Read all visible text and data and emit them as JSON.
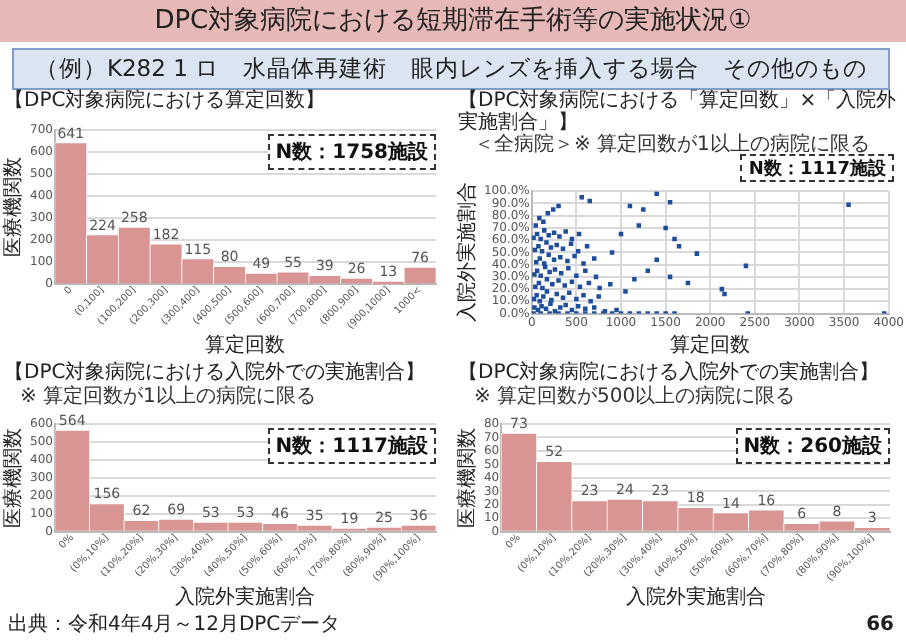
{
  "chart_data": [
    {
      "type": "other",
      "title": "DPC対象病院における短期滞在手術等の実施状況①",
      "subtitle": "（例）K282 1 ロ　水晶体再建術　眼内レンズを挿入する場合　その他のもの",
      "annotations": [
        "出典：令和4年4月～12月DPCデータ",
        "66"
      ]
    },
    {
      "type": "bar",
      "title": "【DPC対象病院における算定回数】",
      "xlabel": "算定回数",
      "ylabel": "医療機関数",
      "categories": [
        "0",
        "(0,100]",
        "(100,200]",
        "(200,300]",
        "(300,400]",
        "(400,500]",
        "(500,600]",
        "(600,700]",
        "(700,800]",
        "(800,900]",
        "(900,1000]",
        "1000<"
      ],
      "values": [
        641,
        224,
        258,
        182,
        115,
        80,
        49,
        55,
        39,
        26,
        13,
        76
      ],
      "color": "#d99594",
      "ylim": [
        0,
        700
      ],
      "yticks": [
        0,
        100,
        200,
        300,
        400,
        500,
        600,
        700
      ],
      "grid": "y",
      "data_labels": true,
      "annotations": [
        "N数：1758施設"
      ]
    },
    {
      "type": "scatter",
      "title": "【DPC対象病院における「算定回数」×「入院外実施割合」】",
      "subtitle": "＜全病院＞※ 算定回数が1以上の病院に限る",
      "xlabel": "算定回数",
      "ylabel": "入院外実施割合",
      "color": "#1f4e9c",
      "marker": "square",
      "grid": true,
      "xlim": [
        0,
        4000
      ],
      "xticks": [
        0,
        500,
        1000,
        1500,
        2000,
        2500,
        3000,
        3500,
        4000
      ],
      "ylim": [
        0,
        100
      ],
      "yticks": [
        {
          "value": 0,
          "label": "0.0%"
        },
        {
          "value": 10,
          "label": "10.0%"
        },
        {
          "value": 20,
          "label": "20.0%"
        },
        {
          "value": 30,
          "label": "30.0%"
        },
        {
          "value": 40,
          "label": "40.0%"
        },
        {
          "value": 50,
          "label": "50.0%"
        },
        {
          "value": 60,
          "label": "60.0%"
        },
        {
          "value": 70,
          "label": "70.0%"
        },
        {
          "value": 80,
          "label": "80.0%"
        },
        {
          "value": 90,
          "label": "90.0%"
        },
        {
          "value": 100,
          "label": "100.0%"
        }
      ],
      "annotations": [
        "N数：1117施設"
      ],
      "x": [
        20,
        100,
        200,
        300,
        400,
        500,
        600,
        700,
        800,
        900,
        1000,
        1100,
        1200,
        1300,
        1400,
        1500,
        1600,
        30,
        70,
        110,
        160,
        210,
        260,
        320,
        380,
        450,
        520,
        600,
        700,
        820,
        950,
        25,
        55,
        90,
        130,
        170,
        220,
        280,
        350,
        420,
        500,
        580,
        660,
        750,
        40,
        80,
        120,
        170,
        230,
        300,
        370,
        450,
        540,
        640,
        760,
        880,
        30,
        60,
        100,
        150,
        200,
        260,
        330,
        410,
        500,
        600,
        720,
        50,
        90,
        140,
        190,
        250,
        320,
        400,
        480,
        580,
        700,
        35,
        75,
        115,
        165,
        215,
        280,
        350,
        440,
        520,
        620,
        20,
        60,
        100,
        140,
        190,
        250,
        310,
        380,
        450,
        530,
        45,
        85,
        130,
        180,
        240,
        300,
        560,
        650,
        1400,
        1550,
        3550,
        1850,
        1600,
        2400,
        2130,
        2160,
        2420,
        3950,
        1100,
        1250,
        1500,
        1200,
        1650,
        1400,
        1300,
        1550,
        1750,
        1000,
        900,
        1050,
        1150
      ],
      "values": [
        0,
        0,
        0,
        0,
        0,
        0,
        0,
        0,
        0,
        0,
        0,
        0,
        0,
        0,
        0,
        0,
        0,
        5,
        3,
        6,
        4,
        8,
        2,
        5,
        7,
        3,
        6,
        4,
        5,
        2,
        3,
        12,
        15,
        10,
        14,
        18,
        11,
        16,
        13,
        17,
        12,
        15,
        10,
        14,
        22,
        25,
        21,
        28,
        24,
        27,
        23,
        26,
        22,
        25,
        21,
        24,
        32,
        35,
        31,
        38,
        34,
        36,
        33,
        37,
        31,
        35,
        30,
        42,
        45,
        41,
        48,
        44,
        46,
        43,
        47,
        41,
        45,
        52,
        55,
        51,
        58,
        54,
        56,
        53,
        57,
        51,
        55,
        62,
        65,
        61,
        68,
        64,
        66,
        63,
        67,
        61,
        65,
        72,
        78,
        75,
        82,
        85,
        88,
        95,
        92,
        98,
        91,
        89,
        49,
        61,
        39,
        20,
        16,
        0,
        0,
        88,
        85,
        70,
        72,
        55,
        44,
        35,
        30,
        25,
        65,
        50,
        18,
        28
      ]
    },
    {
      "type": "bar",
      "title": "【DPC対象病院における入院外での実施割合】",
      "subtitle": "※ 算定回数が1以上の病院に限る",
      "xlabel": "入院外実施割合",
      "ylabel": "医療機関数",
      "categories": [
        "0%",
        "(0%,10%]",
        "(10%,20%]",
        "(20%,30%]",
        "(30%,40%]",
        "(40%,50%]",
        "(50%,60%]",
        "(60%,70%]",
        "(70%,80%]",
        "(80%,90%]",
        "(90%,100%]"
      ],
      "values": [
        564,
        156,
        62,
        69,
        53,
        53,
        46,
        35,
        19,
        25,
        36
      ],
      "color": "#d99594",
      "ylim": [
        0,
        600
      ],
      "yticks": [
        0,
        100,
        200,
        300,
        400,
        500,
        600
      ],
      "grid": "y",
      "data_labels": true,
      "annotations": [
        "N数：1117施設"
      ]
    },
    {
      "type": "bar",
      "title": "【DPC対象病院における入院外での実施割合】",
      "subtitle": "※ 算定回数が500以上の病院に限る",
      "xlabel": "入院外実施割合",
      "ylabel": "医療機関数",
      "categories": [
        "0%",
        "(0%,10%]",
        "(10%,20%]",
        "(20%,30%]",
        "(30%,40%]",
        "(40%,50%]",
        "(50%,60%]",
        "(60%,70%]",
        "(70%,80%]",
        "(80%,90%]",
        "(90%,100%]"
      ],
      "values": [
        73,
        52,
        23,
        24,
        23,
        18,
        14,
        16,
        6,
        8,
        3
      ],
      "color": "#d99594",
      "ylim": [
        0,
        80
      ],
      "yticks": [
        0,
        10,
        20,
        30,
        40,
        50,
        60,
        70,
        80
      ],
      "grid": "y",
      "data_labels": true,
      "annotations": [
        "N数：260施設"
      ]
    }
  ]
}
